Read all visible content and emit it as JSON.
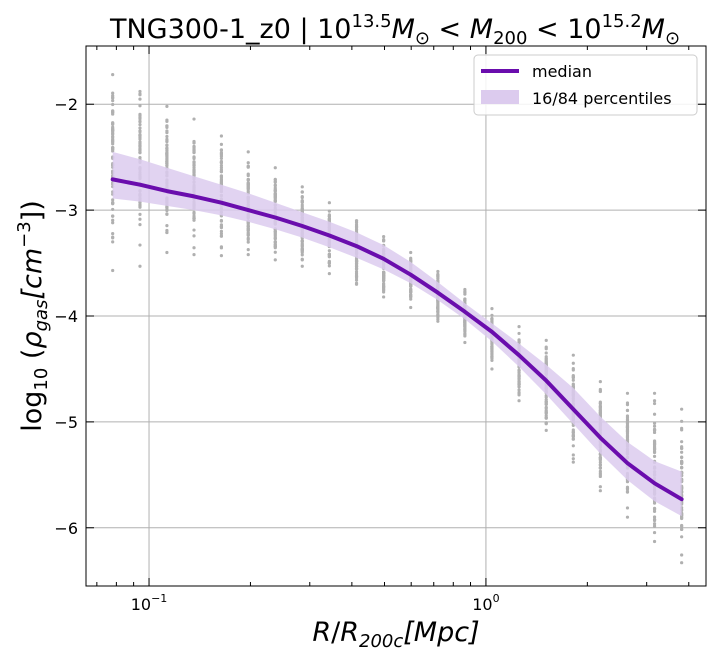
{
  "chart_data": {
    "type": "line",
    "title": {
      "prefix": "TNG300-1_z0 | 10",
      "exp_low": "13.5",
      "mid": "M",
      "sun": "⊙",
      "lt1": " < ",
      "m200_base": "M",
      "m200_sub": "200",
      "lt2": " < 10",
      "exp_high": "15.2",
      "end": "M",
      "end_sun": "⊙"
    },
    "xlabel": {
      "r": "R",
      "slash": "/",
      "big_r": "R",
      "sub": "200c",
      "units": "[Mpc]"
    },
    "ylabel": {
      "log": "log",
      "log_sub": "10",
      "open": " (",
      "rho": "ρ",
      "rho_sub": "gas",
      "units": "[cm",
      "exp": "−3",
      "close": "])"
    },
    "xscale": "log",
    "xlim": [
      0.065,
      4.5
    ],
    "ylim": [
      -6.55,
      -1.45
    ],
    "grid": true,
    "x_ticks": [
      {
        "value": 0.1,
        "base": "10",
        "exp": "−1"
      },
      {
        "value": 1,
        "base": "10",
        "exp": "0"
      }
    ],
    "y_ticks": [
      {
        "value": -2,
        "label": "−2"
      },
      {
        "value": -3,
        "label": "−3"
      },
      {
        "value": -4,
        "label": "−4"
      },
      {
        "value": -5,
        "label": "−5"
      },
      {
        "value": -6,
        "label": "−6"
      }
    ],
    "legend": {
      "position": "top-right",
      "entries": [
        {
          "label": "median",
          "kind": "line"
        },
        {
          "label": "16/84 percentiles",
          "kind": "band"
        }
      ]
    },
    "colors": {
      "median": "#6a0dad",
      "band": "#dccbee",
      "points": "#b0b0b0",
      "grid": "#b0b0b0"
    },
    "series": [
      {
        "role": "median",
        "x": [
          0.078,
          0.094,
          0.113,
          0.136,
          0.164,
          0.197,
          0.237,
          0.285,
          0.343,
          0.413,
          0.497,
          0.598,
          0.72,
          0.866,
          1.042,
          1.254,
          1.51,
          1.817,
          2.186,
          2.631,
          3.166,
          3.81
        ],
        "y": [
          -2.71,
          -2.76,
          -2.82,
          -2.87,
          -2.93,
          -3.0,
          -3.07,
          -3.15,
          -3.24,
          -3.34,
          -3.46,
          -3.61,
          -3.78,
          -3.96,
          -4.15,
          -4.37,
          -4.61,
          -4.88,
          -5.15,
          -5.39,
          -5.58,
          -5.73
        ]
      },
      {
        "role": "percentile-16",
        "x": [
          0.078,
          0.094,
          0.113,
          0.136,
          0.164,
          0.197,
          0.237,
          0.285,
          0.343,
          0.413,
          0.497,
          0.598,
          0.72,
          0.866,
          1.042,
          1.254,
          1.51,
          1.817,
          2.186,
          2.631,
          3.166,
          3.81
        ],
        "y": [
          -2.89,
          -2.92,
          -2.96,
          -3.0,
          -3.05,
          -3.11,
          -3.18,
          -3.26,
          -3.35,
          -3.45,
          -3.56,
          -3.69,
          -3.85,
          -4.03,
          -4.24,
          -4.48,
          -4.74,
          -5.02,
          -5.3,
          -5.55,
          -5.75,
          -5.89
        ]
      },
      {
        "role": "percentile-84",
        "x": [
          0.078,
          0.094,
          0.113,
          0.136,
          0.164,
          0.197,
          0.237,
          0.285,
          0.343,
          0.413,
          0.497,
          0.598,
          0.72,
          0.866,
          1.042,
          1.254,
          1.51,
          1.817,
          2.186,
          2.631,
          3.166,
          3.81
        ],
        "y": [
          -2.45,
          -2.52,
          -2.6,
          -2.68,
          -2.76,
          -2.84,
          -2.93,
          -3.02,
          -3.11,
          -3.21,
          -3.33,
          -3.49,
          -3.68,
          -3.88,
          -4.07,
          -4.26,
          -4.46,
          -4.68,
          -4.95,
          -5.19,
          -5.37,
          -5.47
        ]
      }
    ],
    "scatter_columns": [
      {
        "x": 0.078,
        "ymin": -3.3,
        "ymax": -1.72,
        "outliers": [
          -3.57
        ]
      },
      {
        "x": 0.094,
        "ymin": -3.33,
        "ymax": -1.88,
        "outliers": [
          -3.53
        ]
      },
      {
        "x": 0.113,
        "ymin": -3.4,
        "ymax": -2.02
      },
      {
        "x": 0.136,
        "ymin": -3.42,
        "ymax": -2.14
      },
      {
        "x": 0.164,
        "ymin": -3.43,
        "ymax": -2.3
      },
      {
        "x": 0.197,
        "ymin": -3.42,
        "ymax": -2.45
      },
      {
        "x": 0.237,
        "ymin": -3.47,
        "ymax": -2.6
      },
      {
        "x": 0.285,
        "ymin": -3.53,
        "ymax": -2.78
      },
      {
        "x": 0.343,
        "ymin": -3.6,
        "ymax": -2.93
      },
      {
        "x": 0.413,
        "ymin": -3.7,
        "ymax": -3.1
      },
      {
        "x": 0.497,
        "ymin": -3.82,
        "ymax": -3.25
      },
      {
        "x": 0.598,
        "ymin": -3.92,
        "ymax": -3.4
      },
      {
        "x": 0.72,
        "ymin": -4.05,
        "ymax": -3.58
      },
      {
        "x": 0.866,
        "ymin": -4.25,
        "ymax": -3.75
      },
      {
        "x": 1.042,
        "ymin": -4.5,
        "ymax": -3.93
      },
      {
        "x": 1.254,
        "ymin": -4.8,
        "ymax": -4.1
      },
      {
        "x": 1.51,
        "ymin": -5.08,
        "ymax": -4.23
      },
      {
        "x": 1.817,
        "ymin": -5.38,
        "ymax": -4.37
      },
      {
        "x": 2.186,
        "ymin": -5.65,
        "ymax": -4.62
      },
      {
        "x": 2.631,
        "ymin": -5.9,
        "ymax": -4.73
      },
      {
        "x": 3.166,
        "ymin": -6.13,
        "ymax": -4.73
      },
      {
        "x": 3.81,
        "ymin": -6.33,
        "ymax": -4.88
      }
    ]
  }
}
